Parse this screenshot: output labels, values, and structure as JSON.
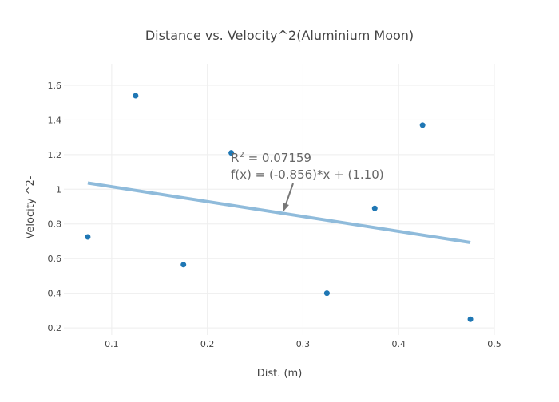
{
  "chart_data": {
    "type": "scatter",
    "title": "Distance vs. Velocity^2(Aluminium Moon)",
    "xlabel": "Dist. (m)",
    "ylabel": "Velocity ^2-",
    "xlim": [
      0.05,
      0.5
    ],
    "ylim": [
      0.159,
      1.724
    ],
    "xticks": [
      0.1,
      0.2,
      0.3,
      0.4,
      0.5
    ],
    "xtick_labels": [
      "0.1",
      "0.2",
      "0.3",
      "0.4",
      "0.5"
    ],
    "yticks": [
      0.2,
      0.4,
      0.6,
      0.8,
      1.0,
      1.2,
      1.4,
      1.6
    ],
    "ytick_labels": [
      "0.2",
      "0.4",
      "0.6",
      "0.8",
      "1",
      "1.2",
      "1.4",
      "1.6"
    ],
    "grid": true,
    "series": [
      {
        "name": "data",
        "mode": "markers",
        "color": "#1f77b4",
        "x": [
          0.075,
          0.125,
          0.175,
          0.225,
          0.325,
          0.375,
          0.425,
          0.475
        ],
        "y": [
          0.725,
          1.54,
          0.565,
          1.21,
          0.4,
          0.89,
          1.37,
          0.25
        ]
      },
      {
        "name": "fit",
        "mode": "line",
        "color": "#8fbbdb",
        "x": [
          0.075,
          0.475
        ],
        "y": [
          1.036,
          0.693
        ]
      }
    ],
    "annotation": {
      "r2_label": "R",
      "r2_sup": "2",
      "r2_value": " = 0.07159",
      "fx_text": "f(x) = (-0.856)*x + (1.10)",
      "arrow_target": [
        0.2795,
        0.872
      ]
    }
  }
}
